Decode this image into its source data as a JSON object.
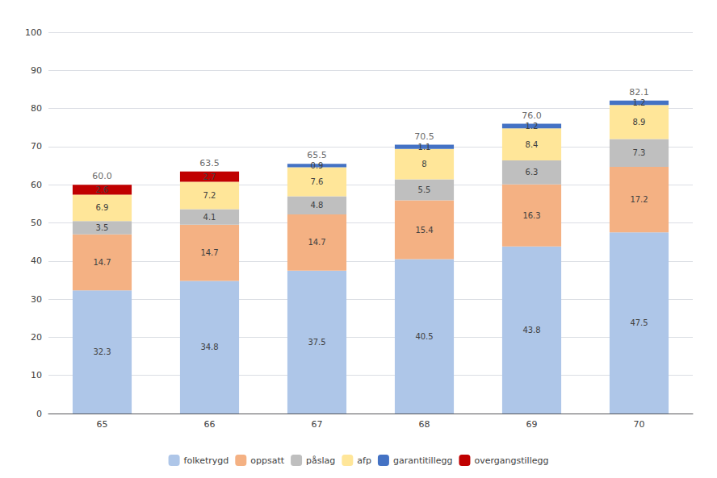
{
  "chart_data": {
    "type": "bar",
    "stacked": true,
    "data_labels": true,
    "grid": true,
    "legend": "bottom",
    "categories": [
      "65",
      "66",
      "67",
      "68",
      "69",
      "70"
    ],
    "series": [
      {
        "name": "folketrygd",
        "color": "#aec6e8",
        "values": [
          32.3,
          34.8,
          37.5,
          40.5,
          43.8,
          47.5
        ]
      },
      {
        "name": "oppsatt",
        "color": "#f4b183",
        "values": [
          14.7,
          14.7,
          14.7,
          15.4,
          16.3,
          17.2
        ]
      },
      {
        "name": "påslag",
        "color": "#bfbfbf",
        "values": [
          3.5,
          4.1,
          4.8,
          5.5,
          6.3,
          7.3
        ]
      },
      {
        "name": "afp",
        "color": "#ffe699",
        "values": [
          6.9,
          7.2,
          7.6,
          8.0,
          8.4,
          8.9
        ]
      },
      {
        "name": "garantitillegg",
        "color": "#4472c4",
        "values": [
          0.0,
          0.0,
          0.9,
          1.1,
          1.2,
          1.2
        ]
      },
      {
        "name": "overgangstillegg",
        "color": "#c00000",
        "values": [
          2.6,
          2.7,
          0.0,
          0.0,
          0.0,
          0.0
        ]
      }
    ],
    "totals": [
      60.0,
      63.5,
      65.5,
      70.5,
      76.0,
      82.1
    ],
    "total_labels": [
      "60.0",
      "63.5",
      "65.5",
      "70.5",
      "76.0",
      "82.1"
    ],
    "ylim": [
      0,
      100
    ],
    "yticks": [
      0,
      10,
      20,
      30,
      40,
      50,
      60,
      70,
      80,
      90,
      100
    ]
  }
}
